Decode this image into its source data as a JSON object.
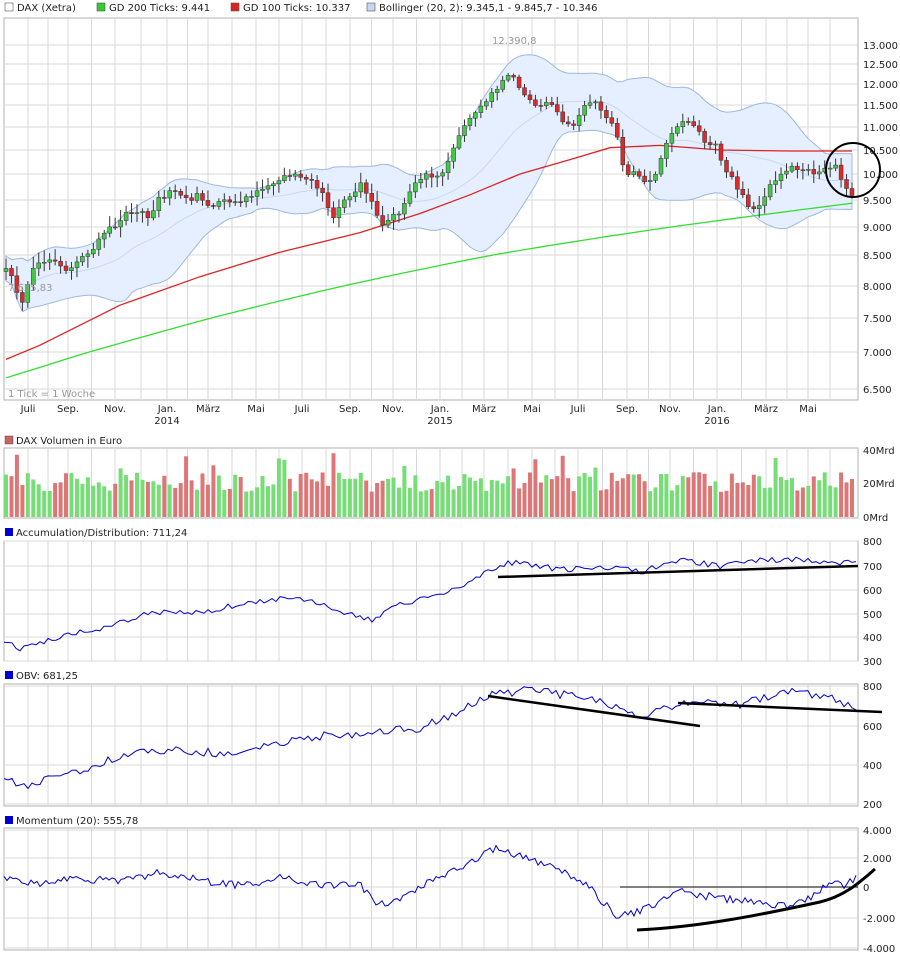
{
  "colors": {
    "up": "#44c744",
    "down": "#d92b2b",
    "bollinger_fill": "#e6efff",
    "bollinger_line": "#9db8e0",
    "gd200": "#33dd33",
    "gd100": "#dd2222",
    "indicator": "#0000cc",
    "grid": "#d8d8d8",
    "volume_up": "#77dd77",
    "volume_down": "#dd7777"
  },
  "main_panel": {
    "legend": [
      {
        "swatch": "#ffffff",
        "label": "DAX (Xetra)"
      },
      {
        "swatch": "#33cc33",
        "label": "GD 200 Ticks: 9.441"
      },
      {
        "swatch": "#dd2222",
        "label": "GD 100 Ticks: 10.337"
      },
      {
        "swatch": "#c6d6f4",
        "label": "Bollinger (20, 2): 9.345,1 - 9.845,7 - 10.346"
      }
    ],
    "high_label": "12.390,8",
    "low_label": "7.655,83",
    "footnote": "1 Tick = 1 Woche",
    "y_ticks": [
      "13.000",
      "12.500",
      "12.000",
      "11.500",
      "11.000",
      "10.500",
      "10.000",
      "9.500",
      "9.000",
      "8.500",
      "8.000",
      "7.500",
      "7.000",
      "6.500"
    ],
    "x_months": [
      "Juli",
      "Sep.",
      "Nov.",
      "Jan.",
      "März",
      "Mai",
      "Juli",
      "Sep.",
      "Nov.",
      "Jan.",
      "März",
      "Mai",
      "Juli",
      "Sep.",
      "Nov.",
      "Jan.",
      "März",
      "Mai"
    ],
    "x_years": [
      "2014",
      "2015",
      "2016"
    ]
  },
  "volume_panel": {
    "legend": {
      "swatch": "#c86464",
      "label": "DAX Volumen in Euro"
    },
    "y_ticks": [
      "40Mrd",
      "20Mrd",
      "0Mrd"
    ]
  },
  "ad_panel": {
    "legend": {
      "swatch": "#0000cc",
      "label": "Accumulation/Distribution: 711,24"
    },
    "y_ticks": [
      "800",
      "700",
      "600",
      "500",
      "400",
      "300"
    ]
  },
  "obv_panel": {
    "legend": {
      "swatch": "#0000cc",
      "label": "OBV: 681,25"
    },
    "y_ticks": [
      "800",
      "600",
      "400",
      "200"
    ]
  },
  "momentum_panel": {
    "legend": {
      "swatch": "#0000cc",
      "label": "Momentum (20): 555,78"
    },
    "y_ticks": [
      "4.000",
      "2.000",
      "0",
      "-2.000",
      "-4.000"
    ]
  },
  "chart_data": {
    "type": "line",
    "title": "DAX (Xetra)",
    "series": [
      {
        "name": "DAX (Xetra)",
        "x": [
          "2013-07",
          "2013-09",
          "2013-11",
          "2014-01",
          "2014-03",
          "2014-05",
          "2014-07",
          "2014-09",
          "2014-11",
          "2015-01",
          "2015-03",
          "2015-05",
          "2015-07",
          "2015-09",
          "2015-11",
          "2016-01",
          "2016-03",
          "2016-05"
        ],
        "values": [
          8000,
          8400,
          9000,
          9300,
          9400,
          9700,
          9900,
          9300,
          9000,
          10000,
          11600,
          11600,
          11300,
          10000,
          11000,
          10000,
          9900,
          10000
        ]
      },
      {
        "name": "GD 200 Ticks",
        "x": [
          "2013-07",
          "2014-07",
          "2015-07",
          "2016-06"
        ],
        "values": [
          6650,
          7500,
          8800,
          9441
        ]
      },
      {
        "name": "GD 100 Ticks",
        "x": [
          "2013-07",
          "2014-07",
          "2015-07",
          "2016-06"
        ],
        "values": [
          6900,
          8300,
          10000,
          10337
        ]
      }
    ],
    "ylim": [
      6000,
      13100
    ],
    "annotations": [
      "12.390,8",
      "7.655,83"
    ]
  }
}
